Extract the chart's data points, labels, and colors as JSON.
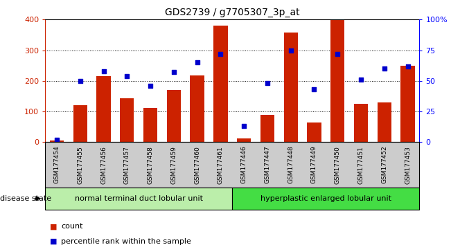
{
  "title": "GDS2739 / g7705307_3p_at",
  "samples": [
    "GSM177454",
    "GSM177455",
    "GSM177456",
    "GSM177457",
    "GSM177458",
    "GSM177459",
    "GSM177460",
    "GSM177461",
    "GSM177446",
    "GSM177447",
    "GSM177448",
    "GSM177449",
    "GSM177450",
    "GSM177451",
    "GSM177452",
    "GSM177453"
  ],
  "counts": [
    5,
    120,
    215,
    142,
    112,
    170,
    218,
    380,
    12,
    88,
    358,
    65,
    398,
    125,
    130,
    250
  ],
  "percentiles": [
    2,
    50,
    58,
    54,
    46,
    57,
    65,
    72,
    13,
    48,
    75,
    43,
    72,
    51,
    60,
    62
  ],
  "group1_label": "normal terminal duct lobular unit",
  "group2_label": "hyperplastic enlarged lobular unit",
  "group1_count": 8,
  "group2_count": 8,
  "bar_color": "#cc2200",
  "dot_color": "#0000cc",
  "group1_bg": "#bbeeaa",
  "group2_bg": "#44dd44",
  "sample_band_bg": "#cccccc",
  "ylim_left": [
    0,
    400
  ],
  "ylim_right": [
    0,
    100
  ],
  "yticks_left": [
    0,
    100,
    200,
    300,
    400
  ],
  "yticks_right": [
    0,
    25,
    50,
    75,
    100
  ],
  "ytick_labels_right": [
    "0",
    "25",
    "50",
    "75",
    "100%"
  ],
  "grid_yticks": [
    100,
    200,
    300
  ],
  "background_color": "#ffffff",
  "disease_state_label": "disease state",
  "legend_count_label": "count",
  "legend_percentile_label": "percentile rank within the sample"
}
